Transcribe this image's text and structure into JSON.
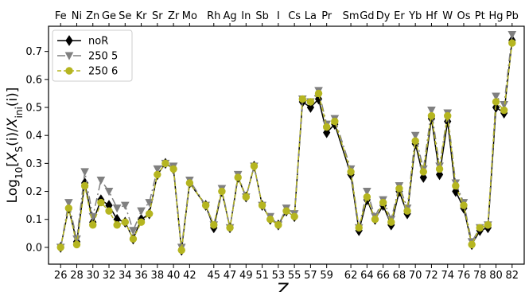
{
  "chart_data": {
    "type": "line",
    "ylabel": "Log10[X_S(i)/X_ini(i)]",
    "xlabel": "Z",
    "xlim": [
      24.5,
      83.5
    ],
    "ylim": [
      -0.06,
      0.79
    ],
    "xticks": [
      26,
      28,
      30,
      32,
      34,
      36,
      38,
      40,
      42,
      45,
      47,
      49,
      51,
      53,
      55,
      57,
      59,
      62,
      64,
      66,
      68,
      70,
      72,
      74,
      76,
      78,
      80,
      82
    ],
    "yticks": [
      0.0,
      0.1,
      0.2,
      0.3,
      0.4,
      0.5,
      0.6,
      0.7
    ],
    "ytick_labels": [
      "0.0",
      "0.1",
      "0.2",
      "0.3",
      "0.4",
      "0.5",
      "0.6",
      "0.7"
    ],
    "element_labels": [
      {
        "z": 26,
        "sym": "Fe"
      },
      {
        "z": 28,
        "sym": "Ni"
      },
      {
        "z": 30,
        "sym": "Zn"
      },
      {
        "z": 32,
        "sym": "Ge"
      },
      {
        "z": 34,
        "sym": "Se"
      },
      {
        "z": 36,
        "sym": "Kr"
      },
      {
        "z": 38,
        "sym": "Sr"
      },
      {
        "z": 40,
        "sym": "Zr"
      },
      {
        "z": 42,
        "sym": "Mo"
      },
      {
        "z": 45,
        "sym": "Rh"
      },
      {
        "z": 47,
        "sym": "Ag"
      },
      {
        "z": 49,
        "sym": "In"
      },
      {
        "z": 51,
        "sym": "Sb"
      },
      {
        "z": 53,
        "sym": "I"
      },
      {
        "z": 55,
        "sym": "Cs"
      },
      {
        "z": 57,
        "sym": "La"
      },
      {
        "z": 59,
        "sym": "Pr"
      },
      {
        "z": 62,
        "sym": "Sm"
      },
      {
        "z": 64,
        "sym": "Gd"
      },
      {
        "z": 66,
        "sym": "Dy"
      },
      {
        "z": 68,
        "sym": "Er"
      },
      {
        "z": 70,
        "sym": "Yb"
      },
      {
        "z": 72,
        "sym": "Hf"
      },
      {
        "z": 74,
        "sym": "W"
      },
      {
        "z": 76,
        "sym": "Os"
      },
      {
        "z": 78,
        "sym": "Pt"
      },
      {
        "z": 80,
        "sym": "Hg"
      },
      {
        "z": 82,
        "sym": "Pb"
      }
    ],
    "x": [
      26,
      27,
      28,
      29,
      30,
      31,
      32,
      33,
      34,
      35,
      36,
      37,
      38,
      39,
      40,
      41,
      42,
      44,
      45,
      46,
      47,
      48,
      49,
      50,
      51,
      52,
      53,
      54,
      55,
      56,
      57,
      58,
      59,
      60,
      62,
      63,
      64,
      65,
      66,
      67,
      68,
      69,
      70,
      71,
      72,
      73,
      74,
      75,
      76,
      77,
      78,
      79,
      80,
      81,
      82
    ],
    "series": [
      {
        "name": "noR",
        "color": "#000000",
        "marker": "diamond",
        "dash": "",
        "values": [
          0.0,
          0.14,
          0.02,
          0.23,
          0.09,
          0.17,
          0.15,
          0.1,
          0.09,
          0.03,
          0.1,
          0.12,
          0.26,
          0.3,
          0.28,
          -0.01,
          0.23,
          0.15,
          0.07,
          0.2,
          0.07,
          0.25,
          0.18,
          0.29,
          0.15,
          0.1,
          0.08,
          0.13,
          0.11,
          0.52,
          0.5,
          0.53,
          0.41,
          0.44,
          0.26,
          0.06,
          0.17,
          0.1,
          0.15,
          0.08,
          0.2,
          0.12,
          0.37,
          0.25,
          0.46,
          0.26,
          0.45,
          0.2,
          0.14,
          0.01,
          0.06,
          0.07,
          0.5,
          0.48,
          0.74
        ]
      },
      {
        "name": "250 5",
        "color": "#808080",
        "marker": "triangle-down",
        "dash": "10 4 2 4",
        "values": [
          0.0,
          0.16,
          0.03,
          0.27,
          0.11,
          0.24,
          0.2,
          0.14,
          0.15,
          0.06,
          0.13,
          0.16,
          0.28,
          0.3,
          0.29,
          0.0,
          0.24,
          0.15,
          0.08,
          0.21,
          0.07,
          0.26,
          0.18,
          0.29,
          0.15,
          0.11,
          0.08,
          0.14,
          0.12,
          0.53,
          0.52,
          0.56,
          0.44,
          0.46,
          0.28,
          0.07,
          0.2,
          0.11,
          0.17,
          0.1,
          0.22,
          0.14,
          0.4,
          0.28,
          0.49,
          0.29,
          0.48,
          0.23,
          0.16,
          0.02,
          0.07,
          0.08,
          0.54,
          0.51,
          0.76
        ]
      },
      {
        "name": "250 6",
        "color": "#b5b520",
        "marker": "circle",
        "dash": "5 3",
        "values": [
          0.0,
          0.14,
          0.01,
          0.22,
          0.08,
          0.16,
          0.13,
          0.08,
          0.09,
          0.03,
          0.09,
          0.12,
          0.26,
          0.3,
          0.28,
          -0.01,
          0.23,
          0.15,
          0.08,
          0.2,
          0.07,
          0.25,
          0.18,
          0.29,
          0.15,
          0.1,
          0.08,
          0.13,
          0.11,
          0.53,
          0.52,
          0.55,
          0.43,
          0.45,
          0.27,
          0.07,
          0.18,
          0.1,
          0.16,
          0.09,
          0.21,
          0.13,
          0.38,
          0.27,
          0.47,
          0.28,
          0.47,
          0.22,
          0.15,
          0.01,
          0.07,
          0.08,
          0.52,
          0.49,
          0.73
        ]
      }
    ],
    "legend_placement": "top-left",
    "grid": false
  }
}
